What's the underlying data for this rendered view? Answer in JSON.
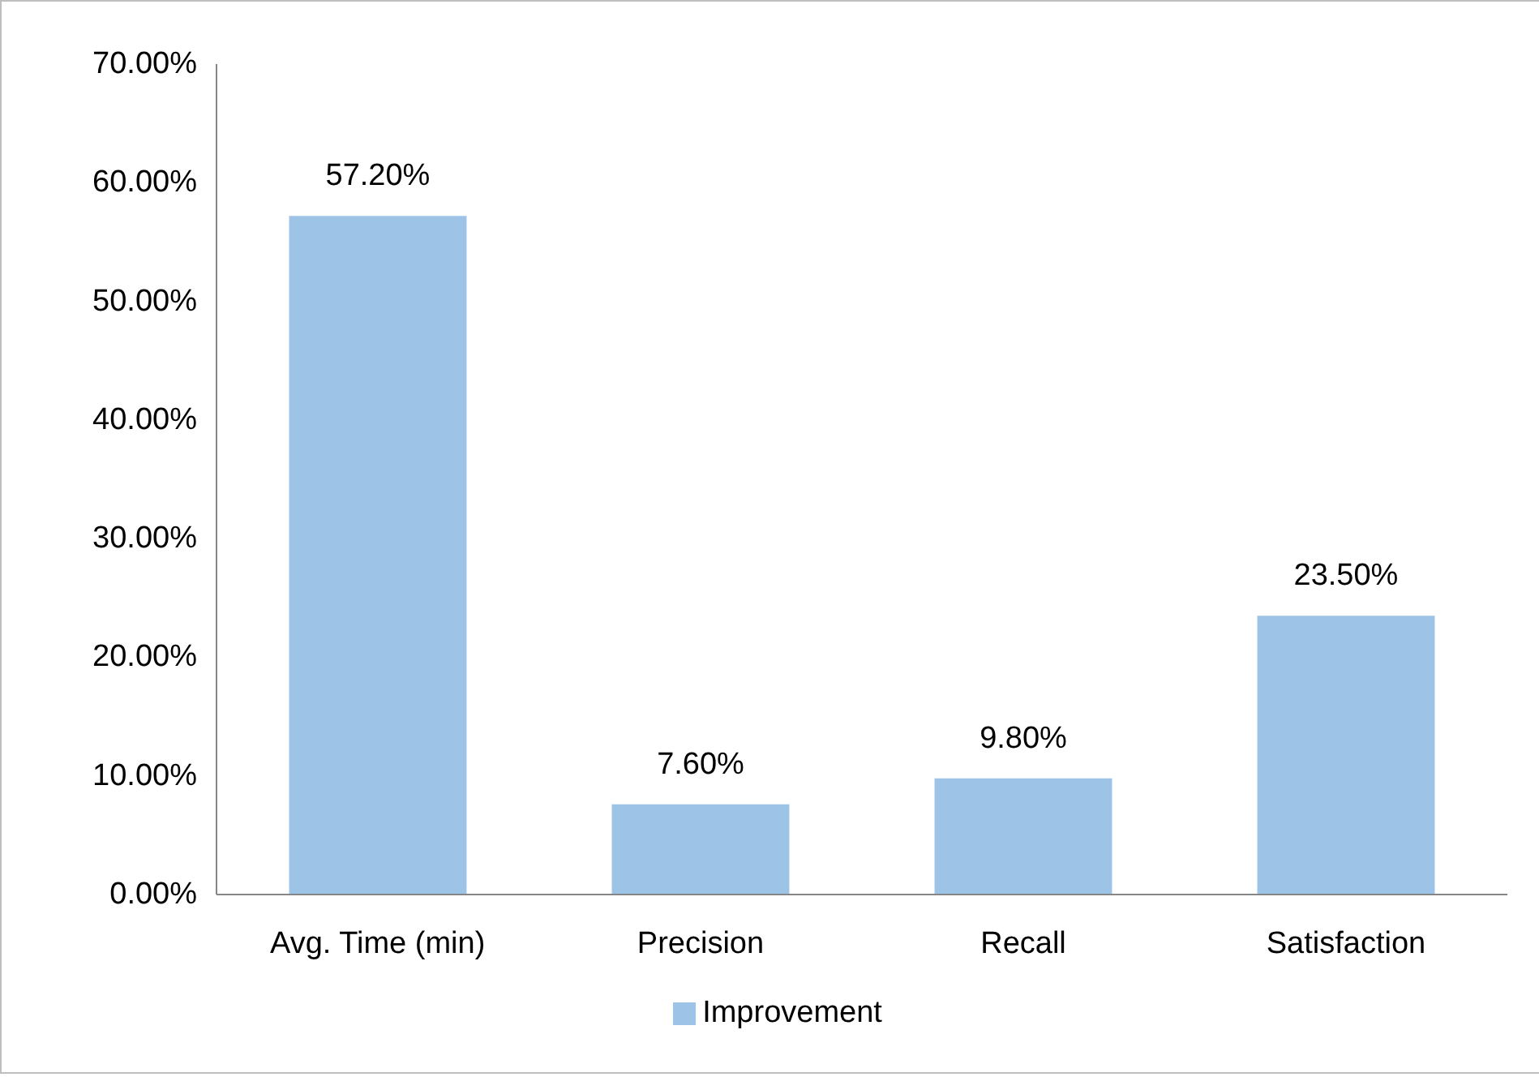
{
  "chart_data": {
    "type": "bar",
    "categories": [
      "Avg. Time (min)",
      "Precision",
      "Recall",
      "Satisfaction"
    ],
    "series": [
      {
        "name": "Improvement",
        "color": "#9dc3e6",
        "values": [
          57.2,
          7.6,
          9.8,
          23.5
        ]
      }
    ],
    "value_labels": [
      "57.20%",
      "7.60%",
      "9.80%",
      "23.50%"
    ],
    "ylim": [
      0,
      70
    ],
    "yticks": [
      {
        "value": 0,
        "label": "0.00%"
      },
      {
        "value": 10,
        "label": "10.00%"
      },
      {
        "value": 20,
        "label": "20.00%"
      },
      {
        "value": 30,
        "label": "30.00%"
      },
      {
        "value": 40,
        "label": "40.00%"
      },
      {
        "value": 50,
        "label": "50.00%"
      },
      {
        "value": 60,
        "label": "60.00%"
      },
      {
        "value": 70,
        "label": "70.00%"
      }
    ],
    "grid": false,
    "legend": "bottom"
  }
}
